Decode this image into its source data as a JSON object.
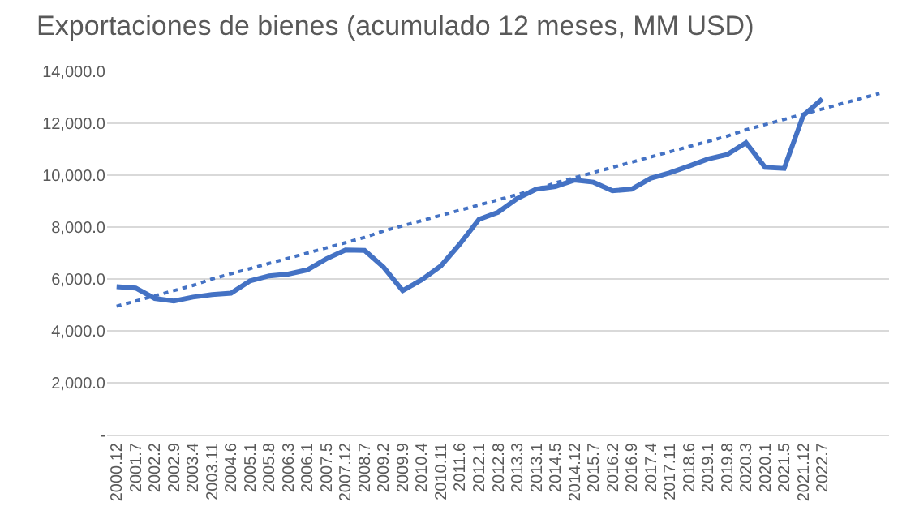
{
  "chart_data": {
    "type": "line",
    "title": "Exportaciones de bienes (acumulado 12 meses, MM USD)",
    "categories": [
      "2000.12",
      "2001.7",
      "2002.2",
      "2002.9",
      "2003.4",
      "2003.11",
      "2004.6",
      "2005.1",
      "2005.8",
      "2006.3",
      "2006.1",
      "2007.5",
      "2007.12",
      "2008.7",
      "2009.2",
      "2009.9",
      "2010.4",
      "2010.11",
      "2011.6",
      "2012.1",
      "2012.8",
      "2013.3",
      "2013.1",
      "2014.5",
      "2014.12",
      "2015.7",
      "2016.2",
      "2016.9",
      "2017.4",
      "2017.11",
      "2018.6",
      "2019.1",
      "2019.8",
      "2020.3",
      "2020.1",
      "2021.5",
      "2021.12",
      "2022.7",
      null,
      null,
      null
    ],
    "series": [
      {
        "color": "#4472c4",
        "values": [
          5700,
          5650,
          5250,
          5150,
          5300,
          5400,
          5450,
          5930,
          6120,
          6190,
          6350,
          6780,
          7120,
          7100,
          6450,
          5550,
          5970,
          6500,
          7350,
          8300,
          8570,
          9100,
          9460,
          9560,
          9810,
          9730,
          9400,
          9460,
          9880,
          10090,
          10350,
          10620,
          10790,
          11250,
          10300,
          10260,
          12300,
          12940,
          null,
          null,
          null
        ]
      },
      {
        "type": "line",
        "line_style": "dotted",
        "color": "#4472c4",
        "values": [
          4950,
          5150,
          5350,
          5550,
          5750,
          6000,
          6200,
          6400,
          6600,
          6800,
          7000,
          7200,
          7400,
          7600,
          7850,
          8050,
          8250,
          8450,
          8650,
          8850,
          9050,
          9250,
          9450,
          9700,
          9900,
          10100,
          10300,
          10500,
          10700,
          10900,
          11100,
          11300,
          11500,
          11750,
          11950,
          12150,
          12350,
          12550,
          12750,
          12950,
          13150
        ]
      }
    ],
    "ylim": [
      0,
      14000
    ],
    "yticks": [
      {
        "value": 0,
        "label": "-"
      },
      {
        "value": 2000,
        "label": "2,000.0"
      },
      {
        "value": 4000,
        "label": "4,000.0"
      },
      {
        "value": 6000,
        "label": "6,000.0"
      },
      {
        "value": 8000,
        "label": "8,000.0"
      },
      {
        "value": 10000,
        "label": "10,000.0"
      },
      {
        "value": 12000,
        "label": "12,000.0"
      },
      {
        "value": 14000,
        "label": "14,000.0"
      }
    ],
    "grid": "y"
  }
}
